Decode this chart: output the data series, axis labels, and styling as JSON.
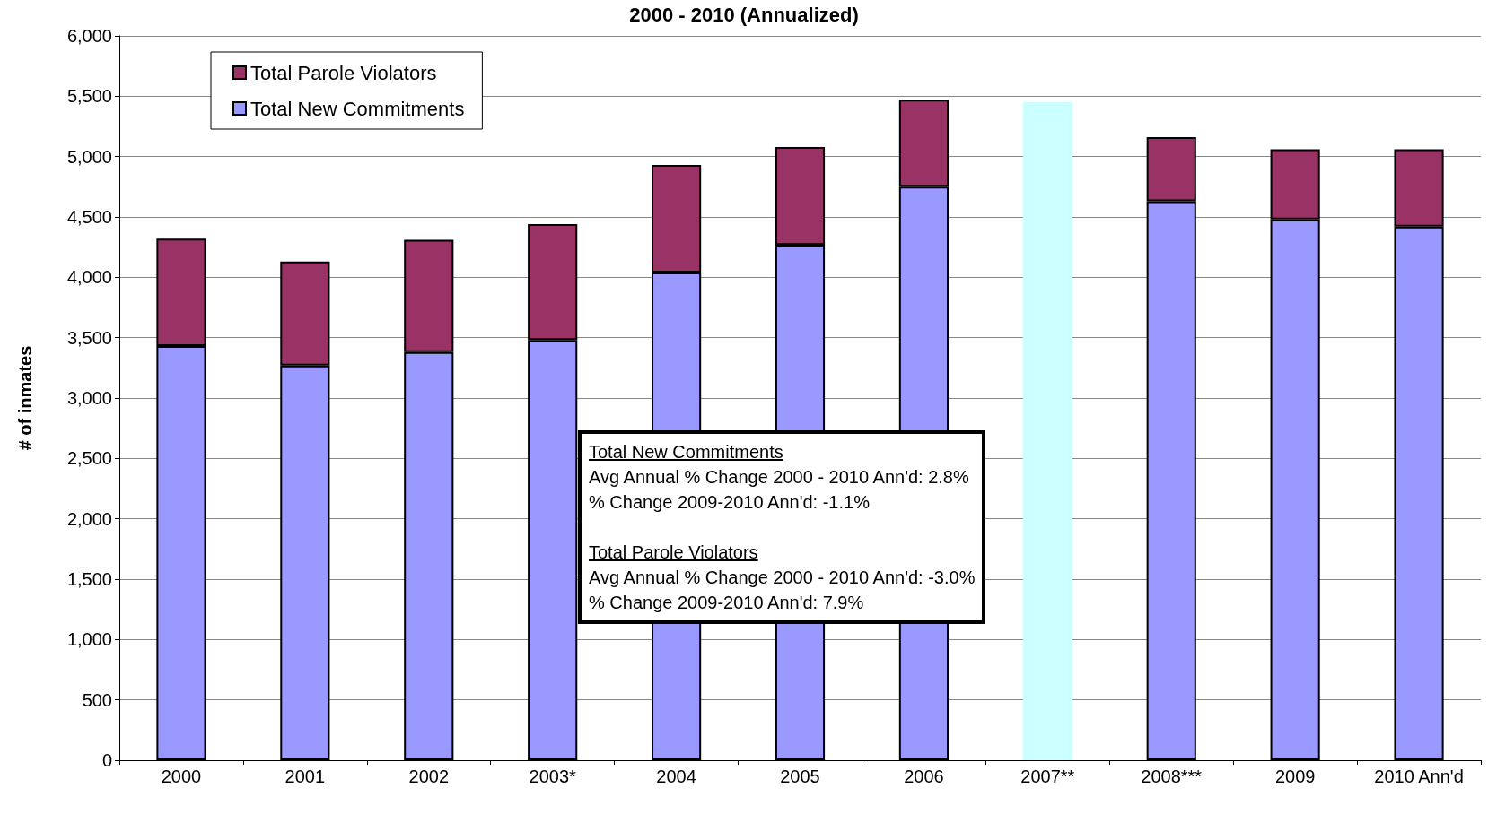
{
  "chart_data": {
    "type": "bar",
    "title": "2000 - 2010 (Annualized)",
    "ylabel": "# of inmates",
    "stacked": true,
    "categories": [
      "2000",
      "2001",
      "2002",
      "2003*",
      "2004",
      "2005",
      "2006",
      "2007**",
      "2008***",
      "2009",
      "2010 Ann'd"
    ],
    "series": [
      {
        "name": "Total New Commitments",
        "color": "#9999ff",
        "values": [
          3430,
          3270,
          3380,
          3480,
          4040,
          4270,
          4750,
          null,
          4630,
          4480,
          4420
        ]
      },
      {
        "name": "Total Parole Violators",
        "color": "#993366",
        "values": [
          890,
          860,
          930,
          960,
          890,
          810,
          720,
          null,
          530,
          580,
          640
        ]
      },
      {
        "color": "#ccffff",
        "values": [
          null,
          null,
          null,
          null,
          null,
          null,
          null,
          5450,
          null,
          null,
          null
        ]
      }
    ],
    "ylim": [
      0,
      6000
    ],
    "yticks": [
      0,
      500,
      {
        "value": 1000,
        "label": "1,000"
      },
      {
        "value": 1500,
        "label": "1,500"
      },
      {
        "value": 2000,
        "label": "2,000"
      },
      {
        "value": 2500,
        "label": "2,500"
      },
      {
        "value": 3000,
        "label": "3,000"
      },
      {
        "value": 3500,
        "label": "3,500"
      },
      {
        "value": 4000,
        "label": "4,000"
      },
      {
        "value": 4500,
        "label": "4,500"
      },
      {
        "value": 5000,
        "label": "5,000"
      },
      {
        "value": 5500,
        "label": "5,500"
      },
      {
        "value": 6000,
        "label": "6,000"
      }
    ],
    "grid": "y",
    "legend": "top left",
    "annotations": [
      "Total New Commitments\nAvg Annual % Change 2000 - 2010 Ann'd: 2.8%\n% Change 2009-2010 Ann'd: -1.1%",
      "Total Parole Violators\nAvg Annual % Change 2000 - 2010 Ann'd: -3.0%\n% Change 2009-2010 Ann'd: 7.9%"
    ]
  }
}
